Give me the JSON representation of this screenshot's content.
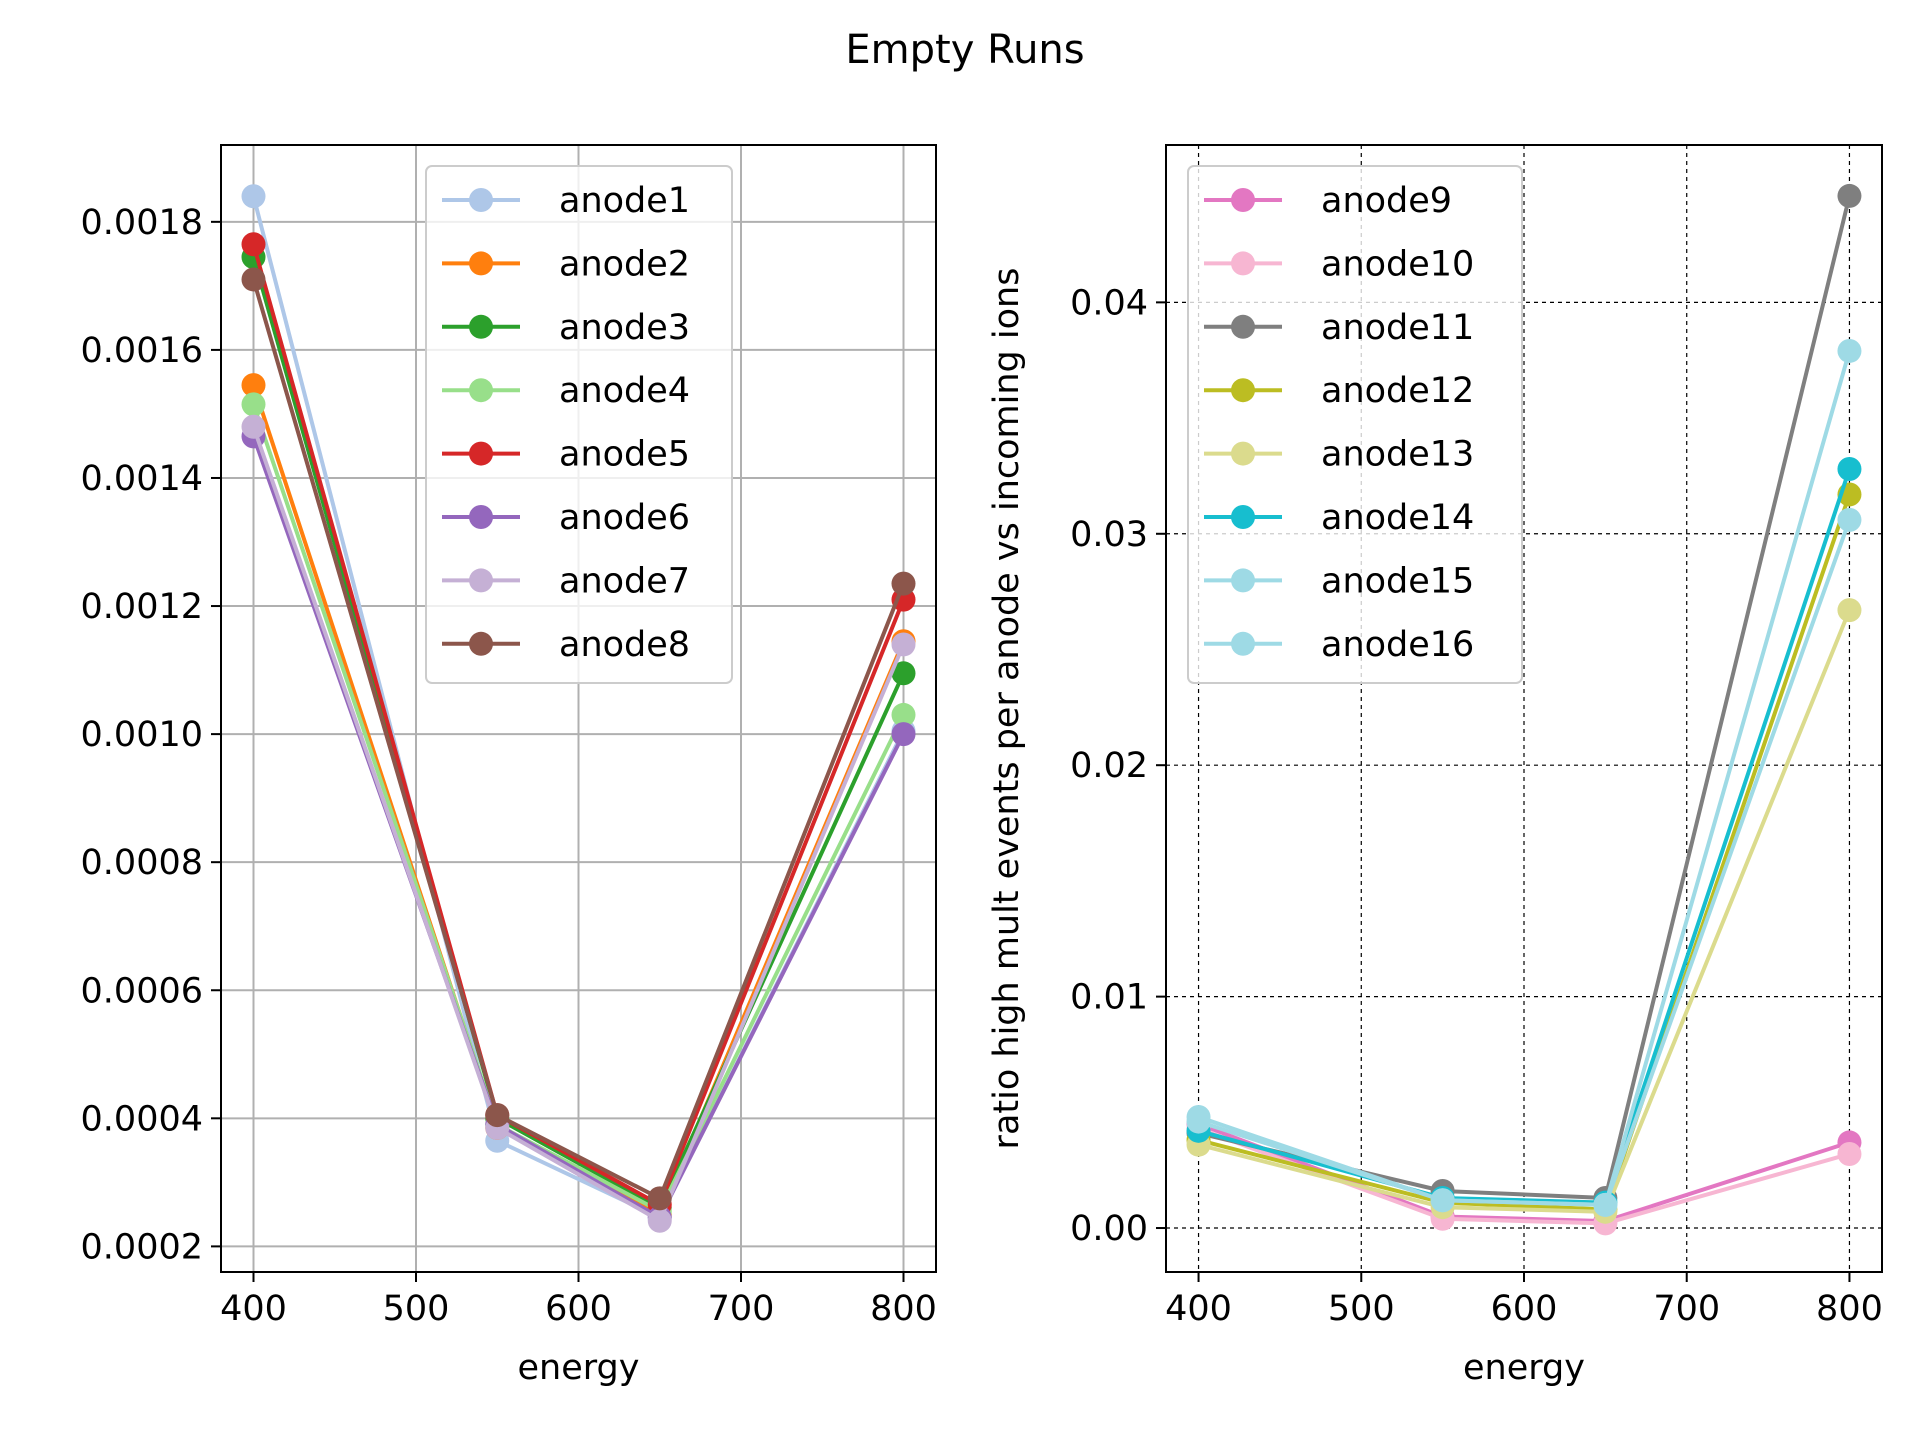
{
  "figure": {
    "title": "Empty Runs"
  },
  "chart_data": [
    {
      "type": "line",
      "xlabel": "energy",
      "ylabel": "",
      "x": [
        400,
        550,
        650,
        800
      ],
      "xlim": [
        380,
        820
      ],
      "ylim": [
        0.00016,
        0.00192
      ],
      "xticks": [
        400,
        500,
        600,
        700,
        800
      ],
      "xtick_labels": [
        "400",
        "500",
        "600",
        "700",
        "800"
      ],
      "yticks": [
        0.0002,
        0.0004,
        0.0006,
        0.0008,
        0.001,
        0.0012,
        0.0014,
        0.0016,
        0.0018
      ],
      "ytick_labels": [
        "0.0002",
        "0.0004",
        "0.0006",
        "0.0008",
        "0.0010",
        "0.0012",
        "0.0014",
        "0.0016",
        "0.0018"
      ],
      "grid": "solid",
      "legend": "upper-center",
      "series": [
        {
          "name": "anode1",
          "color": "#aec7e8",
          "values": [
            0.00184,
            0.000365,
            0.000245,
            0.001005
          ]
        },
        {
          "name": "anode2",
          "color": "#ff7f0e",
          "values": [
            0.001545,
            0.000385,
            0.00025,
            0.001145
          ]
        },
        {
          "name": "anode3",
          "color": "#2ca02c",
          "values": [
            0.001745,
            0.0004,
            0.00026,
            0.001095
          ]
        },
        {
          "name": "anode4",
          "color": "#98df8a",
          "values": [
            0.001515,
            0.00039,
            0.000255,
            0.00103
          ]
        },
        {
          "name": "anode5",
          "color": "#d62728",
          "values": [
            0.001765,
            0.000405,
            0.000265,
            0.00121
          ]
        },
        {
          "name": "anode6",
          "color": "#9467bd",
          "values": [
            0.001465,
            0.00039,
            0.000245,
            0.001
          ]
        },
        {
          "name": "anode7",
          "color": "#c5b0d5",
          "values": [
            0.00148,
            0.000385,
            0.00024,
            0.00114
          ]
        },
        {
          "name": "anode8",
          "color": "#8c564b",
          "values": [
            0.00171,
            0.000405,
            0.000275,
            0.001235
          ]
        }
      ]
    },
    {
      "type": "line",
      "xlabel": "energy",
      "ylabel": "ratio high mult events per anode  vs incoming ions",
      "x": [
        400,
        550,
        650,
        800
      ],
      "xlim": [
        380,
        820
      ],
      "ylim": [
        -0.0019,
        0.0468
      ],
      "xticks": [
        400,
        500,
        600,
        700,
        800
      ],
      "xtick_labels": [
        "400",
        "500",
        "600",
        "700",
        "800"
      ],
      "yticks": [
        0.0,
        0.01,
        0.02,
        0.03,
        0.04
      ],
      "ytick_labels": [
        "0.00",
        "0.01",
        "0.02",
        "0.03",
        "0.04"
      ],
      "grid": "dashed",
      "legend": "upper-left",
      "series": [
        {
          "name": "anode9",
          "color": "#e377c2",
          "values": [
            0.0045,
            0.0005,
            0.0003,
            0.0037
          ]
        },
        {
          "name": "anode10",
          "color": "#f7b6d2",
          "values": [
            0.0043,
            0.0004,
            0.0002,
            0.0032
          ]
        },
        {
          "name": "anode11",
          "color": "#7f7f7f",
          "values": [
            0.0041,
            0.0016,
            0.0013,
            0.0446
          ]
        },
        {
          "name": "anode12",
          "color": "#bcbd22",
          "values": [
            0.0038,
            0.0011,
            0.0008,
            0.0317
          ]
        },
        {
          "name": "anode13",
          "color": "#dbdb8d",
          "values": [
            0.0036,
            0.0009,
            0.0007,
            0.0267
          ]
        },
        {
          "name": "anode14",
          "color": "#17becf",
          "values": [
            0.0042,
            0.0013,
            0.0011,
            0.0328
          ]
        },
        {
          "name": "anode15",
          "color": "#9edae5",
          "values": [
            0.0046,
            0.0012,
            0.001,
            0.0306
          ]
        },
        {
          "name": "anode16",
          "color": "#9edae5",
          "values": [
            0.0048,
            0.0012,
            0.001,
            0.0379
          ]
        }
      ]
    }
  ]
}
